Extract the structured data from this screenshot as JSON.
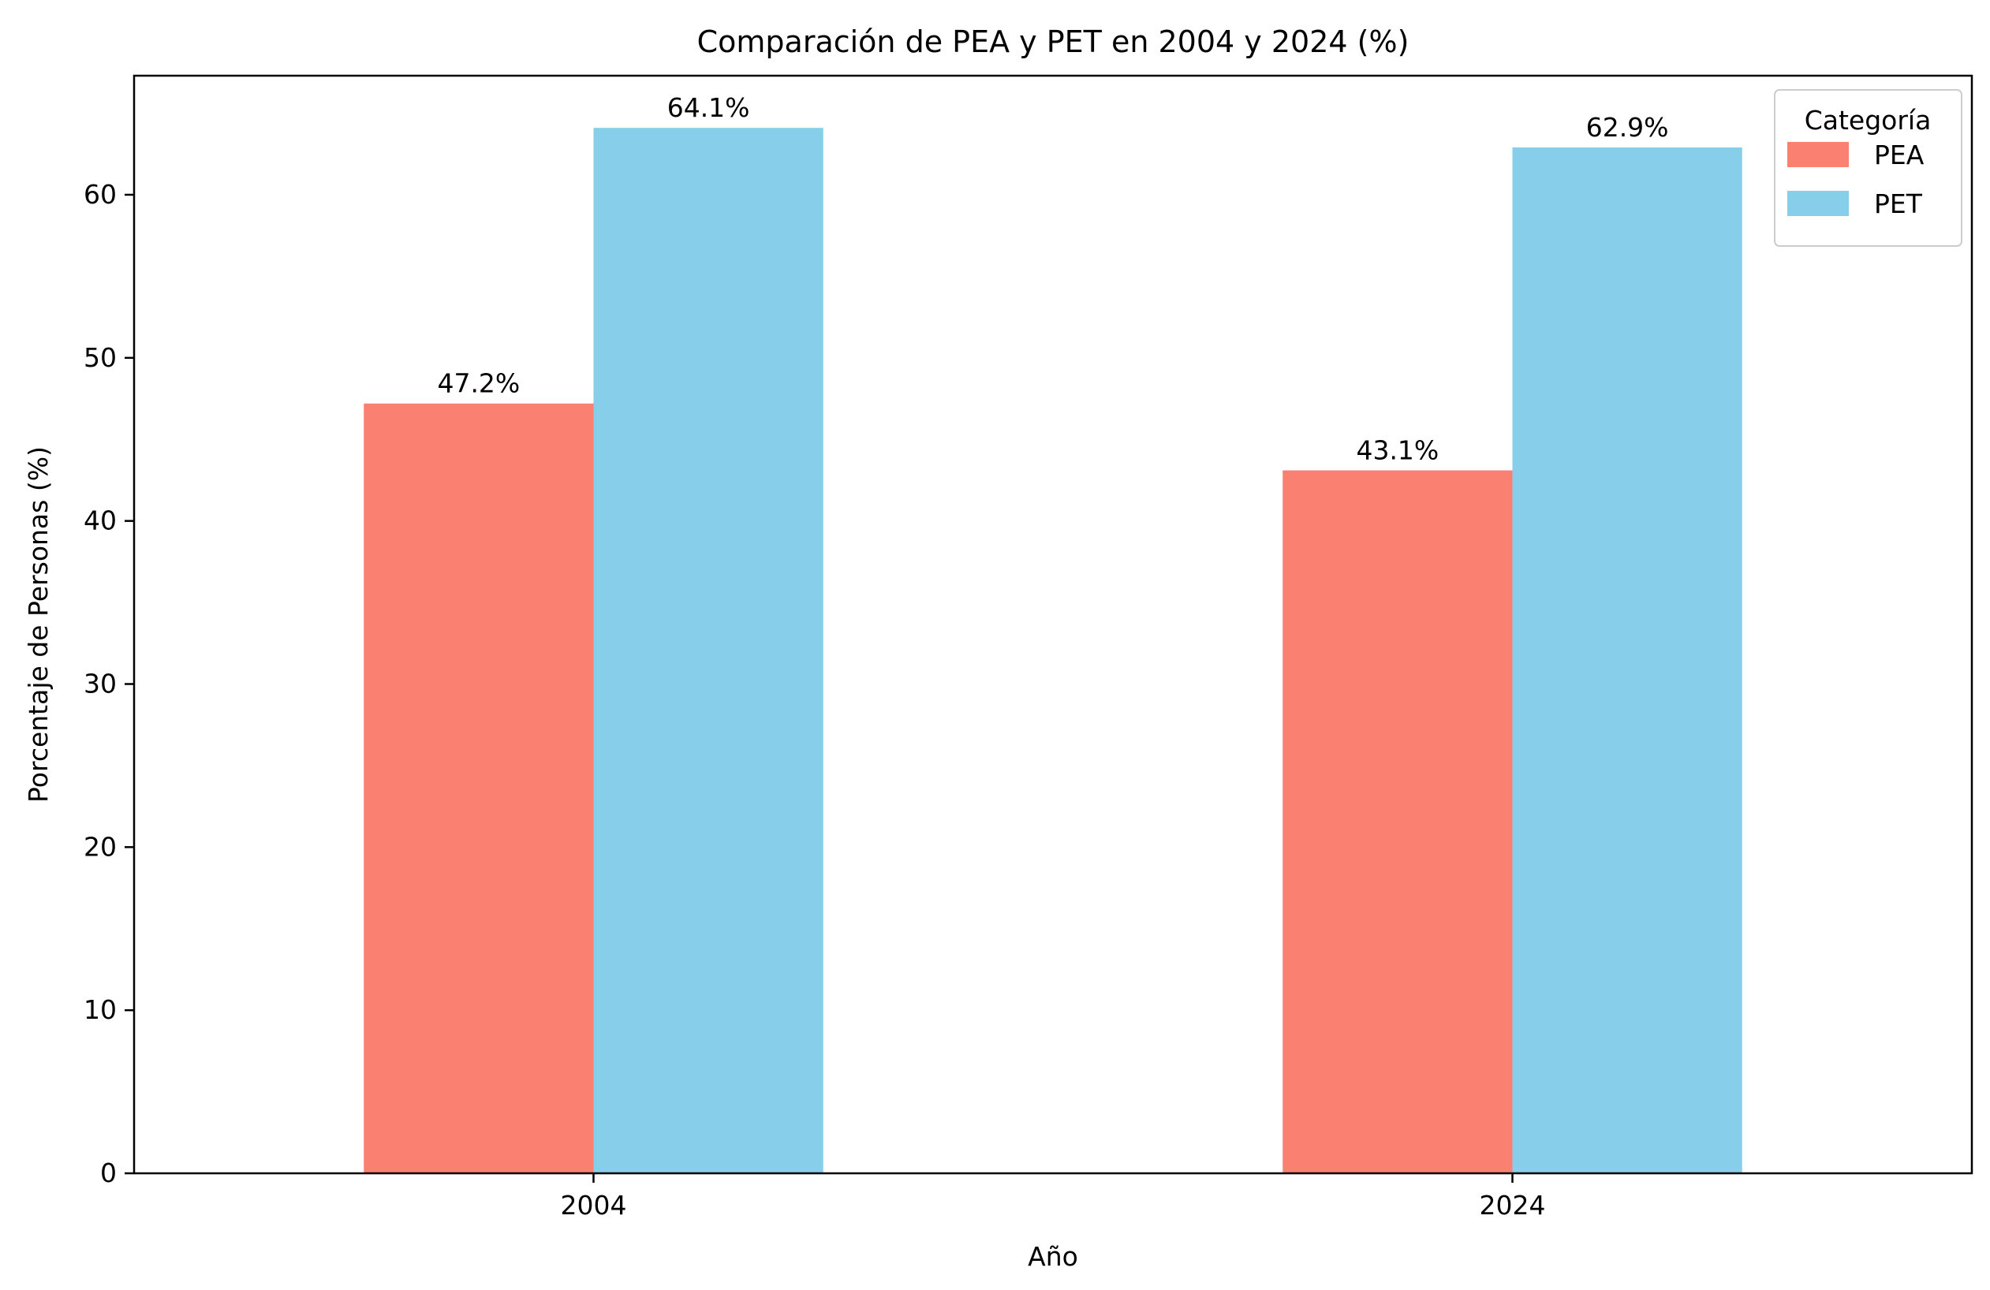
{
  "chart_data": {
    "type": "bar",
    "title": "Comparación de PEA y PET en 2004 y 2024 (%)",
    "xlabel": "Año",
    "ylabel": "Porcentaje de Personas (%)",
    "categories": [
      "2004",
      "2024"
    ],
    "series": [
      {
        "name": "PEA",
        "color": "#FA8072",
        "values": [
          47.2,
          43.1
        ],
        "labels": [
          "47.2%",
          "43.1%"
        ]
      },
      {
        "name": "PET",
        "color": "#87CEEB",
        "values": [
          64.1,
          62.9
        ],
        "labels": [
          "64.1%",
          "62.9%"
        ]
      }
    ],
    "ylim": [
      0,
      67.3
    ],
    "yticks": [
      0,
      10,
      20,
      30,
      40,
      50,
      60
    ],
    "ytick_labels": [
      "0",
      "10",
      "20",
      "30",
      "40",
      "50",
      "60"
    ],
    "legend": {
      "title": "Categoría",
      "placement": "top-right"
    },
    "grid": false
  }
}
